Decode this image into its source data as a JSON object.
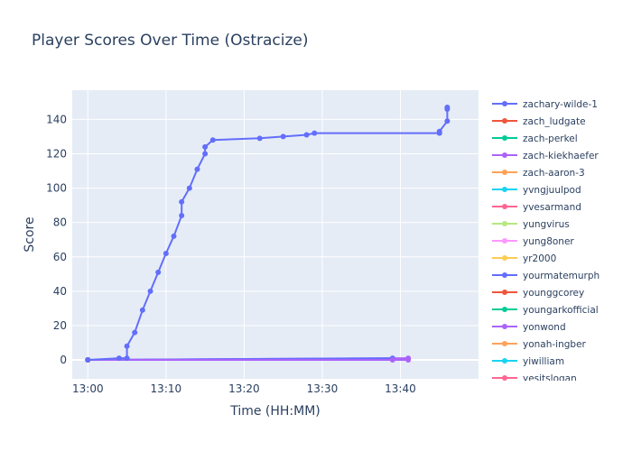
{
  "chart_data": {
    "type": "line",
    "title": "Player Scores Over Time (Ostracize)",
    "xlabel": "Time (HH:MM)",
    "ylabel": "Score",
    "x_unit": "time",
    "xlim": [
      "12:58",
      "13:50"
    ],
    "ylim": [
      -11,
      157
    ],
    "x_ticks": [
      "13:00",
      "13:10",
      "13:20",
      "13:30",
      "13:40"
    ],
    "y_ticks": [
      0,
      20,
      40,
      60,
      80,
      100,
      120,
      140
    ],
    "grid": true,
    "legend_position": "right",
    "legend_truncated": true,
    "series": [
      {
        "name": "zachary-wilde-1",
        "color": "#636efa",
        "x": [
          "13:00",
          "13:04",
          "13:05",
          "13:05",
          "13:06",
          "13:07",
          "13:08",
          "13:09",
          "13:10",
          "13:11",
          "13:12",
          "13:12",
          "13:13",
          "13:14",
          "13:15",
          "13:15",
          "13:16",
          "13:22",
          "13:25",
          "13:28",
          "13:29",
          "13:45",
          "13:45",
          "13:46",
          "13:46",
          "13:46"
        ],
        "y": [
          0,
          1,
          1,
          8,
          16,
          29,
          40,
          51,
          62,
          72,
          84,
          92,
          100,
          111,
          120,
          124,
          128,
          129,
          130,
          131,
          132,
          132,
          133,
          139,
          146,
          147
        ]
      },
      {
        "name": "zach_ludgate",
        "color": "#ef553b",
        "x": [
          "13:00"
        ],
        "y": [
          0
        ]
      },
      {
        "name": "zach-perkel",
        "color": "#00cc96",
        "x": [
          "13:00"
        ],
        "y": [
          0
        ]
      },
      {
        "name": "zach-kiekhaefer",
        "color": "#ab63fa",
        "x": [
          "13:00",
          "13:39",
          "13:41"
        ],
        "y": [
          0,
          0,
          0
        ]
      },
      {
        "name": "zach-aaron-3",
        "color": "#ffa15a",
        "x": [
          "13:00"
        ],
        "y": [
          0
        ]
      },
      {
        "name": "yvngjuulpod",
        "color": "#19d3f3",
        "x": [
          "13:00"
        ],
        "y": [
          0
        ]
      },
      {
        "name": "yvesarmand",
        "color": "#ff6692",
        "x": [
          "13:00"
        ],
        "y": [
          0
        ]
      },
      {
        "name": "yungvirus",
        "color": "#b6e880",
        "x": [
          "13:00"
        ],
        "y": [
          0
        ]
      },
      {
        "name": "yung8oner",
        "color": "#ff97ff",
        "x": [
          "13:00"
        ],
        "y": [
          0
        ]
      },
      {
        "name": "yr2000",
        "color": "#fecb52",
        "x": [
          "13:00"
        ],
        "y": [
          0
        ]
      },
      {
        "name": "yourmatemurph",
        "color": "#636efa",
        "x": [
          "13:00",
          "13:39"
        ],
        "y": [
          0,
          1
        ]
      },
      {
        "name": "younggcorey",
        "color": "#ef553b",
        "x": [
          "13:00"
        ],
        "y": [
          0
        ]
      },
      {
        "name": "youngarkofficial",
        "color": "#00cc96",
        "x": [
          "13:00"
        ],
        "y": [
          0
        ]
      },
      {
        "name": "yonwond",
        "color": "#ab63fa",
        "x": [
          "13:00",
          "13:41"
        ],
        "y": [
          0,
          1
        ]
      },
      {
        "name": "yonah-ingber",
        "color": "#ffa15a",
        "x": [
          "13:00"
        ],
        "y": [
          0
        ]
      },
      {
        "name": "yiwilliam",
        "color": "#19d3f3",
        "x": [
          "13:00"
        ],
        "y": [
          0
        ]
      },
      {
        "name": "yesitslogan",
        "color": "#ff6692",
        "x": [
          "13:00"
        ],
        "y": [
          0
        ]
      }
    ]
  }
}
